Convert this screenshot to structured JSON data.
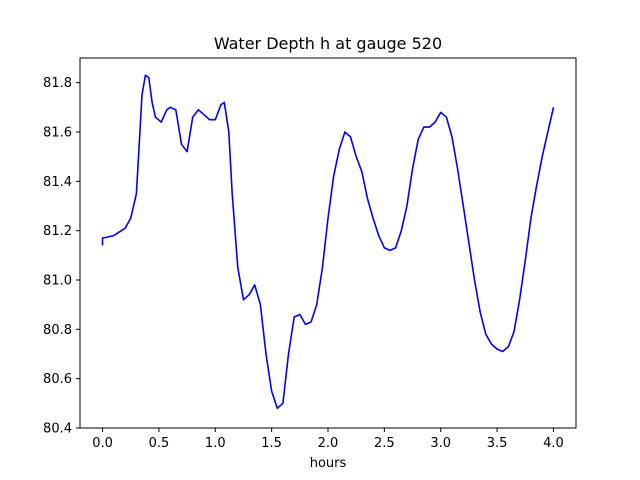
{
  "chart_data": {
    "type": "line",
    "title": "Water Depth h at gauge 520",
    "xlabel": "hours",
    "ylabel": "",
    "xlim": [
      -0.2,
      4.2
    ],
    "ylim": [
      80.4,
      81.9
    ],
    "grid": false,
    "xticks": [
      0.0,
      0.5,
      1.0,
      1.5,
      2.0,
      2.5,
      3.0,
      3.5,
      4.0
    ],
    "xtick_labels": [
      "0.0",
      "0.5",
      "1.0",
      "1.5",
      "2.0",
      "2.5",
      "3.0",
      "3.5",
      "4.0"
    ],
    "yticks": [
      80.4,
      80.6,
      80.8,
      81.0,
      81.2,
      81.4,
      81.6,
      81.8
    ],
    "ytick_labels": [
      "80.4",
      "80.6",
      "80.8",
      "81.0",
      "81.2",
      "81.4",
      "81.6",
      "81.8"
    ],
    "series": [
      {
        "color": "#0000ff",
        "x": [
          0.0,
          0.0,
          0.1,
          0.2,
          0.25,
          0.3,
          0.35,
          0.38,
          0.41,
          0.44,
          0.47,
          0.52,
          0.57,
          0.6,
          0.65,
          0.7,
          0.75,
          0.8,
          0.85,
          0.9,
          0.95,
          1.0,
          1.05,
          1.08,
          1.12,
          1.15,
          1.2,
          1.25,
          1.3,
          1.35,
          1.4,
          1.45,
          1.5,
          1.55,
          1.6,
          1.65,
          1.7,
          1.75,
          1.8,
          1.85,
          1.9,
          1.95,
          2.0,
          2.05,
          2.1,
          2.15,
          2.2,
          2.25,
          2.3,
          2.35,
          2.4,
          2.45,
          2.5,
          2.55,
          2.6,
          2.65,
          2.7,
          2.75,
          2.8,
          2.85,
          2.9,
          2.95,
          3.0,
          3.05,
          3.1,
          3.15,
          3.2,
          3.25,
          3.3,
          3.35,
          3.4,
          3.45,
          3.5,
          3.55,
          3.6,
          3.65,
          3.7,
          3.75,
          3.8,
          3.85,
          3.9,
          3.95,
          4.0
        ],
        "y": [
          81.14,
          81.17,
          81.18,
          81.21,
          81.25,
          81.35,
          81.75,
          81.83,
          81.82,
          81.72,
          81.66,
          81.64,
          81.69,
          81.7,
          81.69,
          81.55,
          81.52,
          81.66,
          81.69,
          81.67,
          81.65,
          81.65,
          81.71,
          81.72,
          81.6,
          81.35,
          81.05,
          80.92,
          80.94,
          80.98,
          80.9,
          80.7,
          80.55,
          80.48,
          80.5,
          80.7,
          80.85,
          80.86,
          80.82,
          80.83,
          80.9,
          81.05,
          81.25,
          81.42,
          81.53,
          81.6,
          81.58,
          81.5,
          81.44,
          81.33,
          81.25,
          81.18,
          81.13,
          81.12,
          81.13,
          81.2,
          81.3,
          81.45,
          81.57,
          81.62,
          81.62,
          81.64,
          81.68,
          81.66,
          81.58,
          81.45,
          81.3,
          81.15,
          81.0,
          80.87,
          80.78,
          80.74,
          80.72,
          80.71,
          80.73,
          80.79,
          80.92,
          81.08,
          81.25,
          81.38,
          81.5,
          81.6,
          81.7
        ]
      }
    ]
  }
}
